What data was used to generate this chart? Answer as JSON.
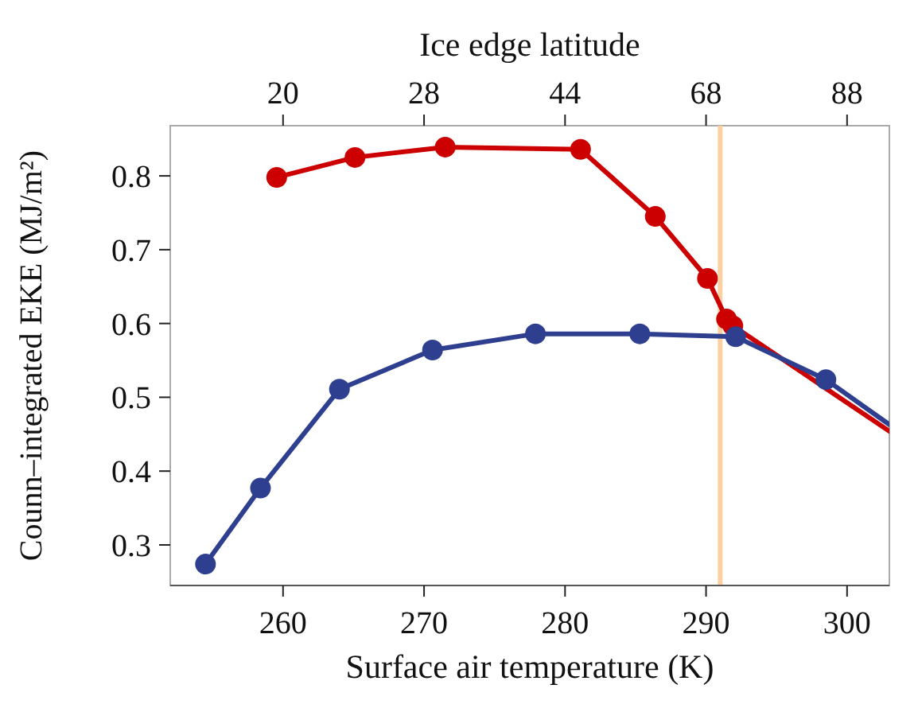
{
  "chart_data": {
    "type": "line",
    "xlabel": "Surface air temperature (K)",
    "ylabel": "Counn–integrated EKE (MJ/m²)",
    "x2label": "Ice edge latitude",
    "xlim": [
      252,
      303
    ],
    "xticks": [
      260,
      270,
      280,
      290,
      300
    ],
    "annotations": [
      "20",
      "28",
      "44",
      "68",
      "88"
    ],
    "ylim": [
      0.245,
      0.868
    ],
    "yticks": [
      0.3,
      0.4,
      0.5,
      0.6,
      0.7,
      0.8
    ],
    "grid": false,
    "marker": "circle",
    "line_style": "solid",
    "ref_lines": [
      {
        "axis": "x",
        "value": 291,
        "color": "#fdd0a2"
      }
    ],
    "series": [
      {
        "color": "#cc0000",
        "x": [
          259.55,
          265.1,
          271.5,
          281.1,
          286.4,
          290.1,
          291.45,
          291.9
        ],
        "values": [
          0.798,
          0.825,
          0.839,
          0.836,
          0.745,
          0.661,
          0.606,
          0.597
        ]
      },
      {
        "color": "#cc0000",
        "marker": "none",
        "x": [
          291.9,
          303
        ],
        "values": [
          0.597,
          0.454
        ]
      },
      {
        "color": "#2e3f8f",
        "x": [
          254.5,
          258.4,
          264.0,
          270.6,
          277.9,
          285.3,
          292.1,
          298.5
        ],
        "values": [
          0.274,
          0.377,
          0.511,
          0.564,
          0.586,
          0.586,
          0.582,
          0.524
        ]
      },
      {
        "color": "#2e3f8f",
        "marker": "none",
        "x": [
          298.5,
          303
        ],
        "values": [
          0.524,
          0.463
        ]
      }
    ]
  }
}
